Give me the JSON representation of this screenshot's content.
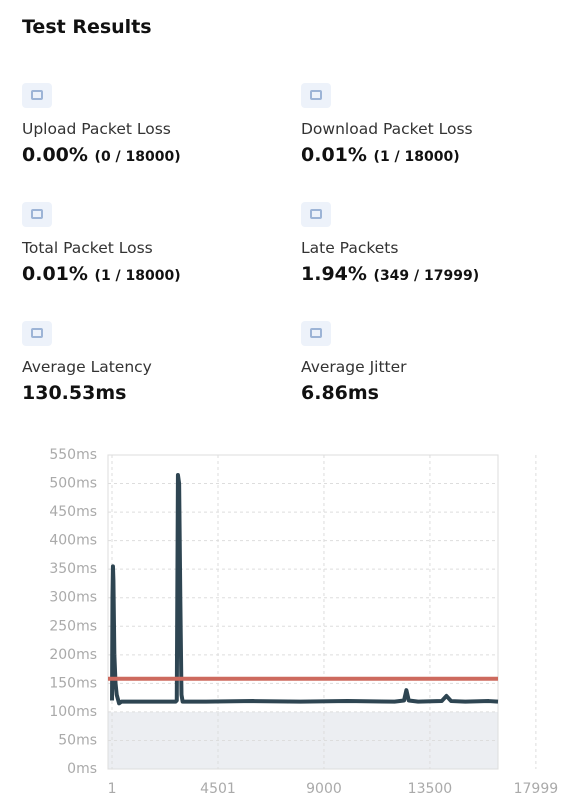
{
  "title": "Test Results",
  "stats": [
    {
      "label": "Upload Packet Loss",
      "value": "0.00%",
      "detail": "(0 / 18000)"
    },
    {
      "label": "Download Packet Loss",
      "value": "0.01%",
      "detail": "(1 / 18000)"
    },
    {
      "label": "Total Packet Loss",
      "value": "0.01%",
      "detail": "(1 / 18000)"
    },
    {
      "label": "Late Packets",
      "value": "1.94%",
      "detail": "(349 / 17999)"
    },
    {
      "label": "Average Latency",
      "value": "130.53ms"
    },
    {
      "label": "Average Jitter",
      "value": "6.86ms"
    }
  ],
  "chart_data": {
    "type": "line",
    "series": [
      {
        "color": "#2e4552",
        "x": [
          1,
          20,
          40,
          60,
          100,
          150,
          200,
          300,
          400,
          2700,
          2750,
          2800,
          2850,
          2900,
          2950,
          3000,
          4000,
          6000,
          8000,
          10000,
          12000,
          12400,
          12500,
          12600,
          13000,
          14000,
          14200,
          14400,
          15000,
          16000,
          16390
        ],
        "values": [
          120,
          300,
          355,
          330,
          200,
          150,
          130,
          115,
          118,
          118,
          120,
          515,
          500,
          300,
          130,
          118,
          118,
          119,
          118,
          119,
          118,
          120,
          138,
          120,
          118,
          119,
          128,
          119,
          118,
          119,
          118
        ]
      }
    ],
    "reference_line": {
      "value": 158,
      "color": "#cd6a5e"
    },
    "shaded_band": [
      0,
      100
    ],
    "xlim": [
      -170,
      16390
    ],
    "xticks": [
      1,
      4501,
      9000,
      13500,
      17999
    ],
    "ylim": [
      0,
      550
    ],
    "yticks": [
      {
        "value": 0,
        "label": "0ms"
      },
      {
        "value": 50,
        "label": "50ms"
      },
      {
        "value": 100,
        "label": "100ms"
      },
      {
        "value": 150,
        "label": "150ms"
      },
      {
        "value": 200,
        "label": "200ms"
      },
      {
        "value": 250,
        "label": "250ms"
      },
      {
        "value": 300,
        "label": "300ms"
      },
      {
        "value": 350,
        "label": "350ms"
      },
      {
        "value": 400,
        "label": "400ms"
      },
      {
        "value": 450,
        "label": "450ms"
      },
      {
        "value": 500,
        "label": "500ms"
      },
      {
        "value": 550,
        "label": "550ms"
      }
    ],
    "grid": true
  }
}
